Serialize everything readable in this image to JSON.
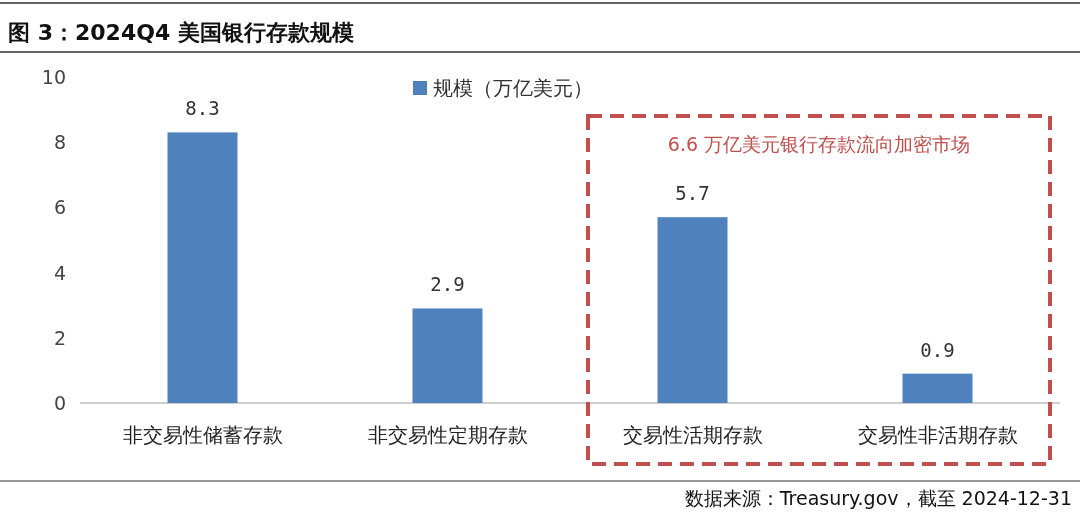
{
  "chart_data": {
    "type": "bar",
    "title": "图 3：2024Q4 美国银行存款规模",
    "categories": [
      "非交易性储蓄存款",
      "非交易性定期存款",
      "交易性活期存款",
      "交易性非活期存款"
    ],
    "series": [
      {
        "name": "规模（万亿美元）",
        "color": "#4f81bd",
        "values": [
          8.3,
          2.9,
          5.7,
          0.9
        ]
      }
    ],
    "ylim": [
      0,
      10
    ],
    "yticks": [
      0,
      2,
      4,
      6,
      8,
      10
    ],
    "legend": "top",
    "data_labels": true,
    "annotations": [
      "6.6 万亿美元银行存款流向加密市场",
      "数据来源：Treasury.gov，截至 2024-12-31"
    ]
  }
}
